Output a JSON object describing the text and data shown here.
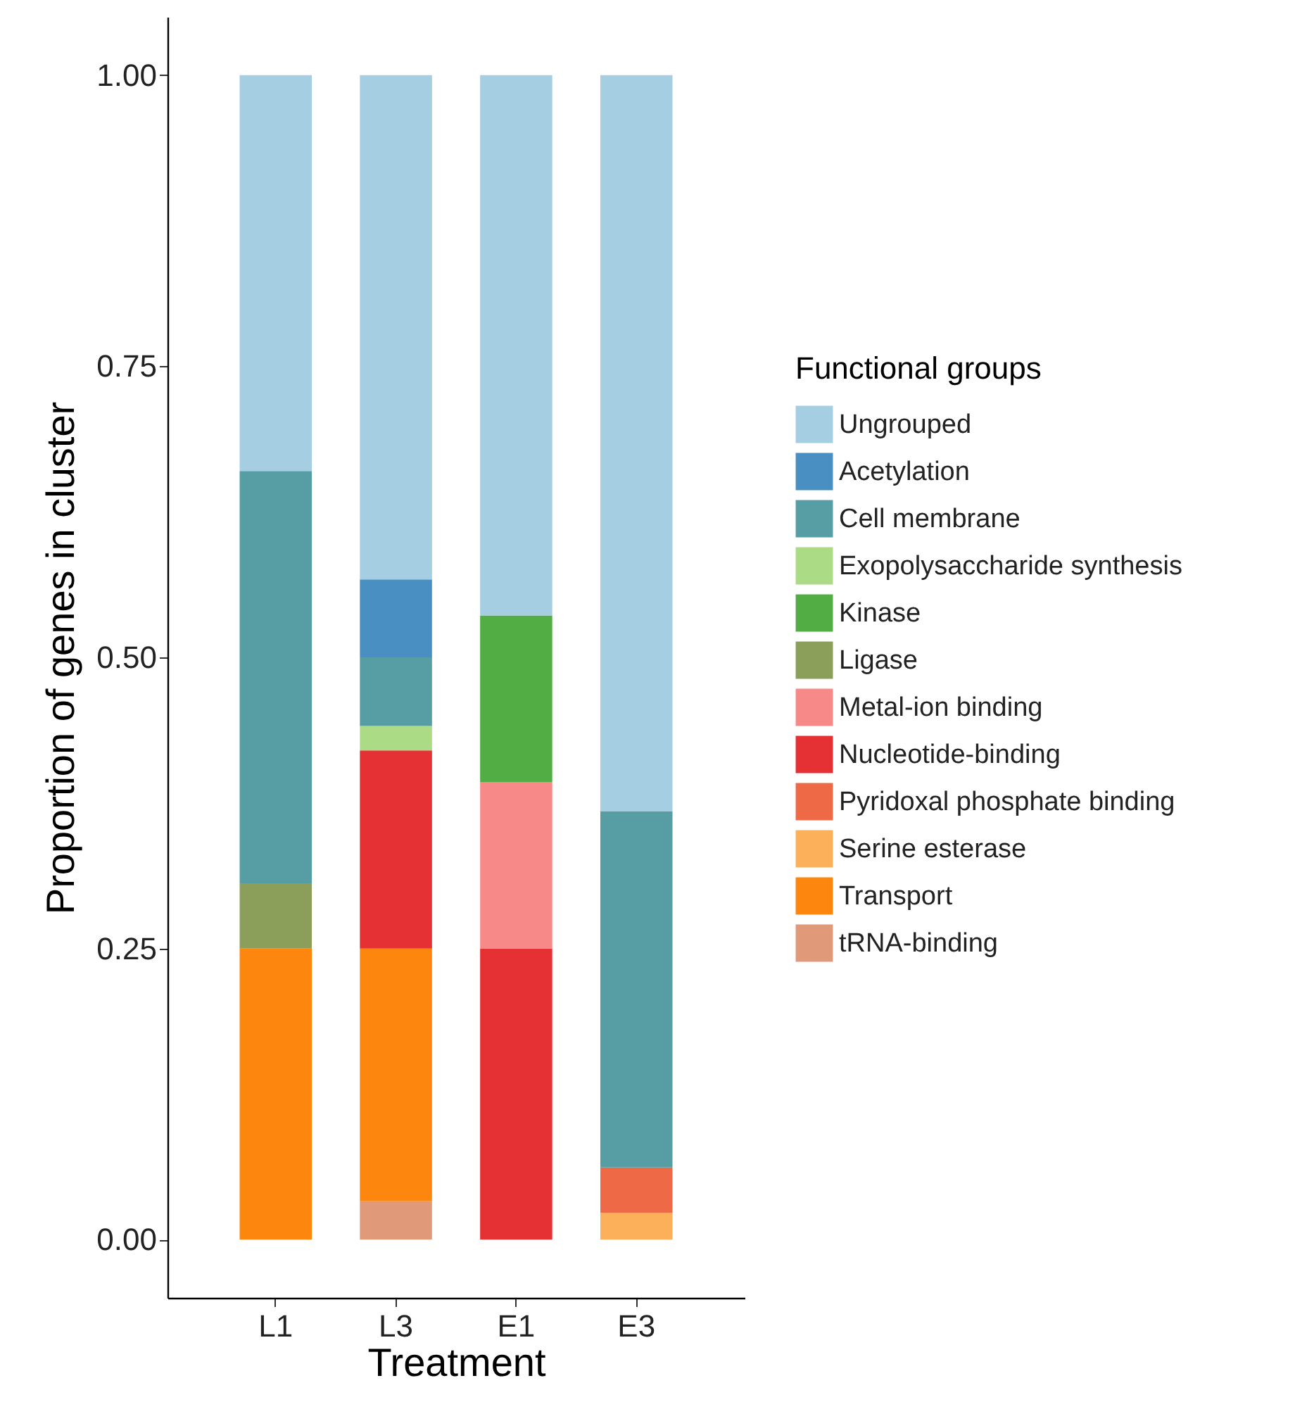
{
  "chart_data": {
    "type": "bar",
    "stacked": true,
    "xlabel": "Treatment",
    "ylabel": "Proportion of genes in cluster",
    "legend_title": "Functional groups",
    "legend": "right",
    "grid": false,
    "categories": [
      "L1",
      "L3",
      "E1",
      "E3"
    ],
    "ylim": [
      -0.05,
      1.05
    ],
    "yticks": [
      {
        "value": 0,
        "label": "0.00"
      },
      {
        "value": 0.25,
        "label": "0.25"
      },
      {
        "value": 0.5,
        "label": "0.50"
      },
      {
        "value": 0.75,
        "label": "0.75"
      },
      {
        "value": 1,
        "label": "1.00"
      }
    ],
    "series": [
      {
        "name": "tRNA-binding",
        "color": "#e09a79",
        "values": [
          null,
          0.033,
          null,
          null
        ]
      },
      {
        "name": "Transport",
        "color": "#fd870e",
        "values": [
          0.25,
          0.217,
          null,
          null
        ]
      },
      {
        "name": "Serine esterase",
        "color": "#fdb05a",
        "values": [
          null,
          null,
          null,
          0.023
        ]
      },
      {
        "name": "Pyridoxal phosphate binding",
        "color": "#ee6a47",
        "values": [
          null,
          null,
          null,
          0.039
        ]
      },
      {
        "name": "Nucleotide-binding",
        "color": "#e53134",
        "values": [
          null,
          0.17,
          0.25,
          null
        ]
      },
      {
        "name": "Metal-ion binding",
        "color": "#f78a88",
        "values": [
          null,
          null,
          0.143,
          null
        ]
      },
      {
        "name": "Ligase",
        "color": "#8b9e5a",
        "values": [
          0.056,
          null,
          null,
          null
        ]
      },
      {
        "name": "Kinase",
        "color": "#52ae44",
        "values": [
          null,
          null,
          0.143,
          null
        ]
      },
      {
        "name": "Exopolysaccharide synthesis",
        "color": "#acdb86",
        "values": [
          null,
          0.021,
          null,
          null
        ]
      },
      {
        "name": "Cell membrane",
        "color": "#579ea4",
        "values": [
          0.354,
          0.059,
          null,
          0.306
        ]
      },
      {
        "name": "Acetylation",
        "color": "#4a8fc1",
        "values": [
          null,
          0.067,
          null,
          null
        ]
      },
      {
        "name": "Ungrouped",
        "color": "#a6cee3",
        "values": [
          0.34,
          0.433,
          0.464,
          0.632
        ]
      }
    ]
  }
}
